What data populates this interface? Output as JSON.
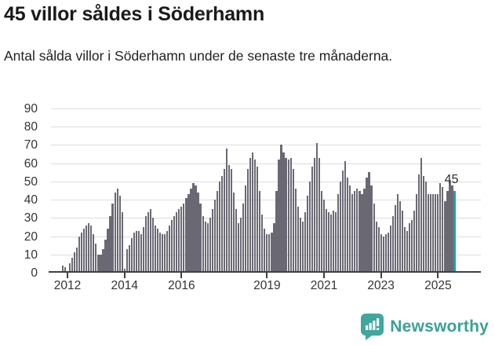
{
  "header": {
    "title": "45 villor såldes i Söderhamn",
    "subtitle": "Antal sålda villor i Söderhamn under de senaste tre månaderna."
  },
  "chart_data": {
    "type": "bar",
    "title": "45 villor såldes i Söderhamn",
    "xlabel": "",
    "ylabel": "",
    "x_start": "2011-11",
    "x_frequency": "monthly",
    "ylim": [
      0,
      90
    ],
    "yticks": [
      0,
      10,
      20,
      30,
      40,
      50,
      60,
      70,
      80,
      90
    ],
    "xticks": [
      "2012",
      "2014",
      "2016",
      "2019",
      "2021",
      "2023",
      "2025"
    ],
    "grid": "horizontal",
    "legend": "none",
    "annotation": {
      "label": "45",
      "note": "last bar highlighted in teal"
    },
    "values": [
      4,
      3,
      1,
      5,
      8,
      11,
      14,
      20,
      22,
      24,
      26,
      27,
      26,
      21,
      16,
      10,
      10,
      13,
      18,
      24,
      31,
      38,
      44,
      46,
      42,
      33,
      2,
      13,
      15,
      19,
      22,
      23,
      23,
      21,
      25,
      31,
      33,
      35,
      30,
      26,
      24,
      22,
      21,
      21,
      23,
      26,
      29,
      31,
      33,
      35,
      36,
      38,
      41,
      43,
      46,
      49,
      48,
      44,
      38,
      31,
      28,
      27,
      30,
      35,
      40,
      45,
      50,
      53,
      57,
      68,
      59,
      57,
      44,
      35,
      27,
      30,
      38,
      48,
      57,
      63,
      66,
      62,
      58,
      45,
      32,
      24,
      21,
      21,
      22,
      27,
      45,
      62,
      70,
      66,
      63,
      62,
      63,
      57,
      46,
      36,
      30,
      28,
      33,
      42,
      50,
      58,
      63,
      71,
      63,
      45,
      40,
      35,
      33,
      32,
      34,
      33,
      43,
      50,
      56,
      61,
      52,
      48,
      43,
      45,
      46,
      45,
      43,
      46,
      52,
      55,
      48,
      38,
      28,
      25,
      21,
      20,
      21,
      22,
      26,
      31,
      37,
      43,
      39,
      34,
      25,
      23,
      27,
      29,
      34,
      43,
      54,
      63,
      53,
      50,
      43,
      43,
      43,
      43,
      43,
      49,
      47,
      39,
      45,
      50,
      48,
      45
    ],
    "colors": {
      "bar": "#6a6973",
      "accent": "#1fa3a0",
      "gridline": "#dddddd",
      "axis": "#404040"
    }
  },
  "footer": {
    "brand": "Newsworthy",
    "brand_color": "#3aa198",
    "logo_color": "#3fa79e"
  }
}
